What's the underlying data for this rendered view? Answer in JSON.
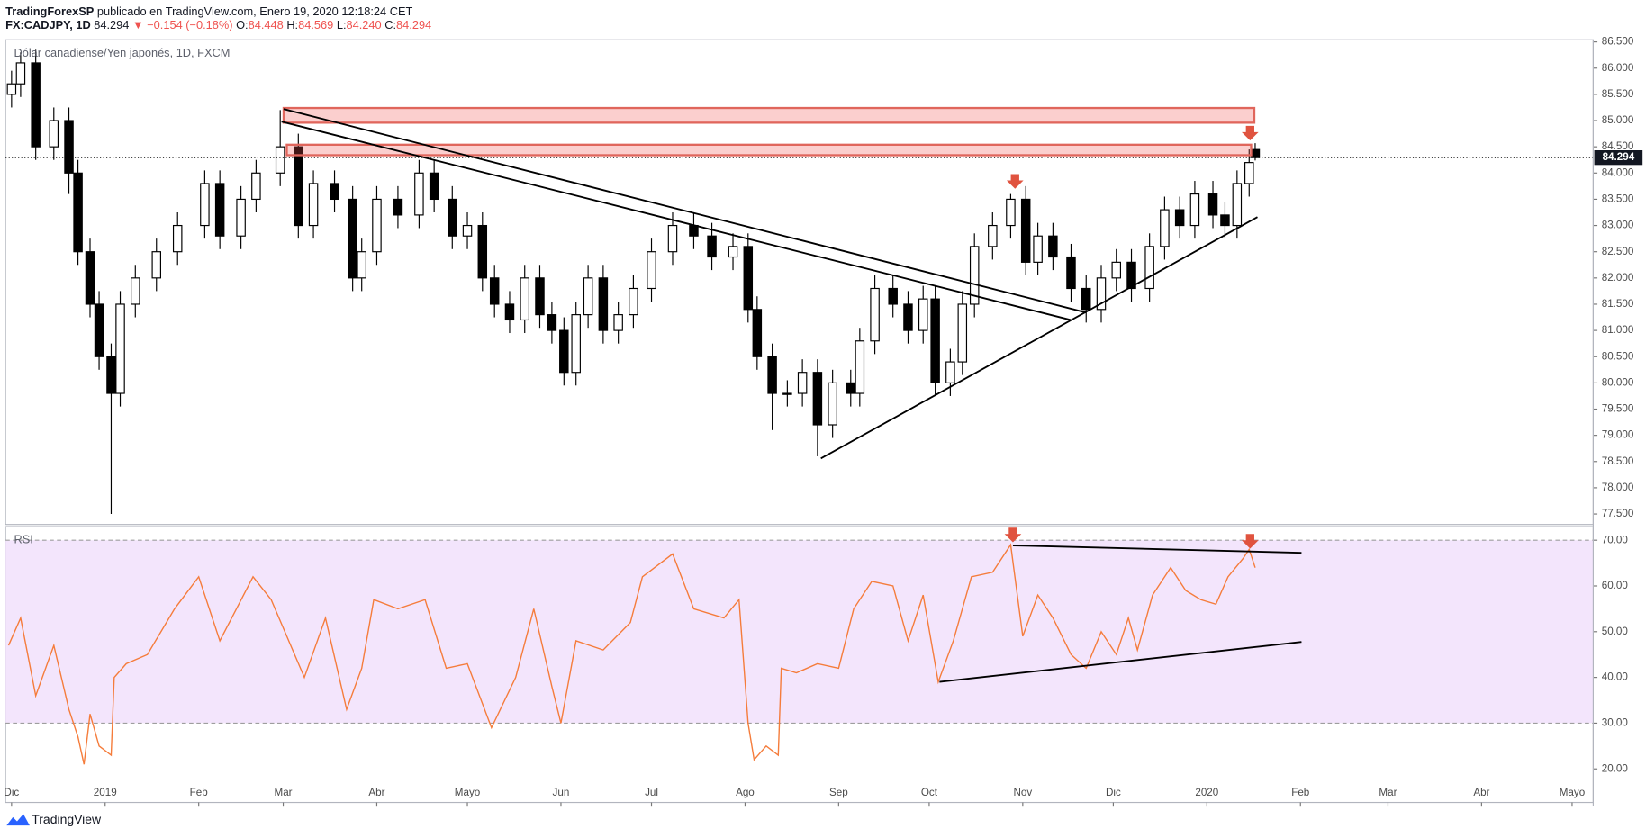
{
  "header": {
    "author": "TradingForexSP",
    "published": "publicado en TradingView.com, Enero 19, 2020 12:18:24 CET",
    "symbol": "FX:CADJPY, 1D",
    "last": "84.294",
    "change": "▼ −0.154 (−0.18%)",
    "o_label": "O:",
    "o": "84.448",
    "h_label": "H:",
    "h": "84.569",
    "l_label": "L:",
    "l": "84.240",
    "c_label": "C:",
    "c": "84.294"
  },
  "chart_data": [
    {
      "type": "candlestick",
      "title": "Dólar canadiense/Yen japonés, 1D, FXCM",
      "up_color": "#ffffff",
      "down_color": "#000000",
      "border_color": "#000000",
      "x": [
        0,
        3,
        8,
        14,
        19,
        22,
        26,
        29,
        33,
        36,
        41,
        48,
        55,
        64,
        69,
        76,
        81,
        89,
        95,
        100,
        107,
        113,
        116,
        121,
        128,
        135,
        140,
        146,
        151,
        156,
        160,
        165,
        170,
        175,
        179,
        183,
        187,
        191,
        196,
        201,
        206,
        212,
        219,
        226,
        232,
        239,
        244,
        247,
        252,
        257,
        262,
        267,
        272,
        278,
        281,
        286,
        292,
        297,
        302,
        306,
        311,
        315,
        319,
        325,
        331,
        336,
        340,
        345,
        351,
        356,
        361,
        366,
        371,
        377,
        382,
        387,
        392,
        398,
        402,
        406,
        410,
        412
      ],
      "open": [
        85.5,
        85.7,
        86.1,
        84.5,
        85.0,
        84.0,
        82.5,
        81.5,
        80.5,
        79.8,
        81.5,
        82.0,
        82.5,
        83.0,
        83.8,
        82.8,
        83.5,
        84.0,
        84.5,
        83.0,
        83.8,
        83.5,
        82.0,
        82.5,
        83.5,
        83.2,
        84.0,
        83.5,
        82.8,
        83.0,
        82.0,
        81.5,
        81.2,
        82.0,
        81.3,
        81.0,
        80.2,
        81.3,
        82.0,
        81.0,
        81.3,
        81.8,
        82.5,
        83.0,
        82.8,
        82.4,
        82.6,
        81.4,
        80.5,
        79.8,
        79.8,
        80.2,
        79.2,
        80.0,
        79.8,
        80.8,
        81.8,
        81.5,
        81.0,
        81.6,
        80.0,
        80.4,
        81.5,
        82.6,
        83.0,
        83.5,
        82.3,
        82.8,
        82.4,
        81.8,
        81.4,
        82.0,
        82.3,
        81.8,
        82.6,
        83.3,
        83.0,
        83.6,
        83.2,
        83.0,
        83.8,
        84.448
      ],
      "high": [
        85.95,
        86.3,
        86.35,
        85.25,
        85.25,
        84.25,
        82.75,
        81.75,
        80.75,
        81.75,
        82.25,
        82.75,
        83.25,
        84.05,
        84.05,
        83.75,
        84.25,
        85.2,
        84.75,
        84.05,
        84.05,
        83.75,
        82.75,
        83.75,
        83.75,
        84.25,
        84.25,
        83.75,
        83.25,
        83.25,
        82.25,
        81.75,
        82.25,
        82.25,
        81.55,
        81.25,
        81.55,
        82.25,
        82.25,
        81.55,
        82.05,
        82.75,
        83.25,
        83.25,
        83.05,
        82.85,
        82.85,
        81.65,
        80.75,
        80.05,
        80.45,
        80.45,
        80.25,
        80.25,
        81.05,
        82.05,
        82.05,
        81.75,
        81.85,
        81.85,
        80.65,
        81.75,
        82.85,
        83.25,
        83.6,
        83.75,
        83.05,
        83.05,
        82.65,
        82.05,
        82.25,
        82.55,
        82.55,
        82.85,
        83.55,
        83.55,
        83.85,
        83.85,
        83.45,
        84.05,
        84.45,
        84.569
      ],
      "low": [
        85.25,
        85.45,
        84.25,
        84.25,
        83.6,
        82.25,
        81.25,
        80.25,
        77.5,
        79.55,
        81.25,
        81.75,
        82.25,
        82.75,
        82.55,
        82.55,
        83.25,
        83.75,
        82.75,
        82.75,
        83.25,
        81.75,
        81.75,
        82.25,
        82.95,
        82.95,
        83.25,
        82.55,
        82.55,
        81.75,
        81.25,
        80.95,
        80.95,
        81.05,
        80.75,
        79.95,
        79.95,
        81.05,
        80.75,
        80.75,
        81.05,
        81.55,
        82.25,
        82.55,
        82.15,
        82.15,
        81.15,
        80.25,
        79.1,
        79.55,
        79.55,
        78.6,
        78.95,
        79.55,
        79.55,
        80.55,
        81.25,
        80.75,
        80.75,
        79.75,
        79.75,
        80.15,
        81.25,
        82.35,
        82.75,
        82.05,
        82.05,
        82.15,
        81.55,
        81.15,
        81.15,
        81.75,
        81.55,
        81.55,
        82.35,
        82.75,
        82.75,
        82.95,
        82.75,
        82.75,
        83.55,
        84.24
      ],
      "close": [
        85.7,
        86.1,
        84.5,
        85.0,
        84.0,
        82.5,
        81.5,
        80.5,
        79.8,
        81.5,
        82.0,
        82.5,
        83.0,
        83.8,
        82.8,
        83.5,
        84.0,
        84.5,
        83.0,
        83.8,
        83.5,
        82.0,
        82.5,
        83.5,
        83.2,
        84.0,
        83.5,
        82.8,
        83.0,
        82.0,
        81.5,
        81.2,
        82.0,
        81.3,
        81.0,
        80.2,
        81.3,
        82.0,
        81.0,
        81.3,
        81.8,
        82.5,
        83.0,
        82.8,
        82.4,
        82.6,
        81.4,
        80.5,
        79.8,
        79.8,
        80.2,
        79.2,
        80.0,
        79.8,
        80.8,
        81.8,
        81.5,
        81.0,
        81.6,
        80.0,
        80.4,
        81.5,
        82.6,
        83.0,
        83.5,
        82.3,
        82.8,
        82.4,
        81.8,
        81.4,
        82.0,
        82.3,
        81.8,
        82.6,
        83.3,
        83.0,
        83.6,
        83.2,
        83.0,
        83.8,
        84.2,
        84.294
      ],
      "price_line": {
        "value": 84.294,
        "label": "84.294"
      },
      "xlim": [
        -2,
        524
      ],
      "ylim": [
        77.3,
        86.54
      ],
      "yticks": [
        {
          "value": 77.5,
          "label": "77.500"
        },
        {
          "value": 78,
          "label": "78.000"
        },
        {
          "value": 78.5,
          "label": "78.500"
        },
        {
          "value": 79,
          "label": "79.000"
        },
        {
          "value": 79.5,
          "label": "79.500"
        },
        {
          "value": 80,
          "label": "80.000"
        },
        {
          "value": 80.5,
          "label": "80.500"
        },
        {
          "value": 81,
          "label": "81.000"
        },
        {
          "value": 81.5,
          "label": "81.500"
        },
        {
          "value": 82,
          "label": "82.000"
        },
        {
          "value": 82.5,
          "label": "82.500"
        },
        {
          "value": 83,
          "label": "83.000"
        },
        {
          "value": 83.5,
          "label": "83.500"
        },
        {
          "value": 84,
          "label": "84.000"
        },
        {
          "value": 84.5,
          "label": "84.500"
        },
        {
          "value": 85,
          "label": "85.000"
        },
        {
          "value": 85.5,
          "label": "85.500"
        },
        {
          "value": 86,
          "label": "86.000"
        },
        {
          "value": 86.5,
          "label": "86.500"
        }
      ],
      "grid": false
    },
    {
      "type": "line",
      "title": "RSI",
      "color": "#f57c3b",
      "band": [
        30,
        70
      ],
      "band_color": "#f3e5fc",
      "x": [
        -1,
        3,
        8,
        14,
        19,
        22,
        24,
        26,
        29,
        33,
        34,
        38,
        45,
        54,
        62,
        69,
        80,
        86,
        97,
        104,
        111,
        116,
        120,
        128,
        137,
        144,
        151,
        159,
        167,
        173,
        179,
        182,
        187,
        196,
        205,
        209,
        219,
        226,
        236,
        241,
        244,
        246,
        250,
        254,
        255,
        260,
        267,
        274,
        279,
        285,
        292,
        297,
        302,
        307,
        312,
        318,
        325,
        331,
        335,
        340,
        345,
        351,
        356,
        361,
        366,
        370,
        373,
        378,
        384,
        389,
        394,
        399,
        403,
        408,
        410,
        412
      ],
      "values": [
        47,
        53,
        36,
        47,
        33,
        27,
        21,
        32,
        25,
        23,
        40,
        43,
        45,
        55,
        62,
        48,
        62,
        57,
        40,
        53,
        33,
        42,
        57,
        55,
        57,
        42,
        43,
        29,
        40,
        55,
        38,
        30,
        48,
        46,
        52,
        62,
        67,
        55,
        53,
        57,
        30,
        22,
        25,
        23,
        42,
        41,
        43,
        42,
        55,
        61,
        60,
        48,
        58,
        39,
        48,
        62,
        63,
        69,
        49,
        58,
        53,
        45,
        42,
        50,
        45,
        53,
        46,
        58,
        64,
        59,
        57,
        56,
        62,
        66,
        68,
        64
      ],
      "xlim": [
        -2,
        524
      ],
      "ylim": [
        12.66,
        72.98
      ],
      "yticks": [
        {
          "value": 20,
          "label": "20.00"
        },
        {
          "value": 30,
          "label": "30.00"
        },
        {
          "value": 40,
          "label": "40.00"
        },
        {
          "value": 50,
          "label": "50.00"
        },
        {
          "value": 60,
          "label": "60.00"
        },
        {
          "value": 70,
          "label": "70.00"
        }
      ],
      "xticks": [
        {
          "value": 0,
          "label": "Dic"
        },
        {
          "value": 31,
          "label": "2019"
        },
        {
          "value": 62,
          "label": "Feb"
        },
        {
          "value": 90,
          "label": "Mar"
        },
        {
          "value": 121,
          "label": "Abr"
        },
        {
          "value": 151,
          "label": "Mayo"
        },
        {
          "value": 182,
          "label": "Jun"
        },
        {
          "value": 212,
          "label": "Jul"
        },
        {
          "value": 243,
          "label": "Ago"
        },
        {
          "value": 274,
          "label": "Sep"
        },
        {
          "value": 304,
          "label": "Oct"
        },
        {
          "value": 335,
          "label": "Nov"
        },
        {
          "value": 365,
          "label": "Dic"
        },
        {
          "value": 396,
          "label": "2020"
        },
        {
          "value": 427,
          "label": "Feb"
        },
        {
          "value": 456,
          "label": "Mar"
        },
        {
          "value": 487,
          "label": "Abr"
        },
        {
          "value": 517,
          "label": "Mayo"
        }
      ],
      "grid": false
    }
  ],
  "footer": {
    "brand": "TradingView"
  }
}
